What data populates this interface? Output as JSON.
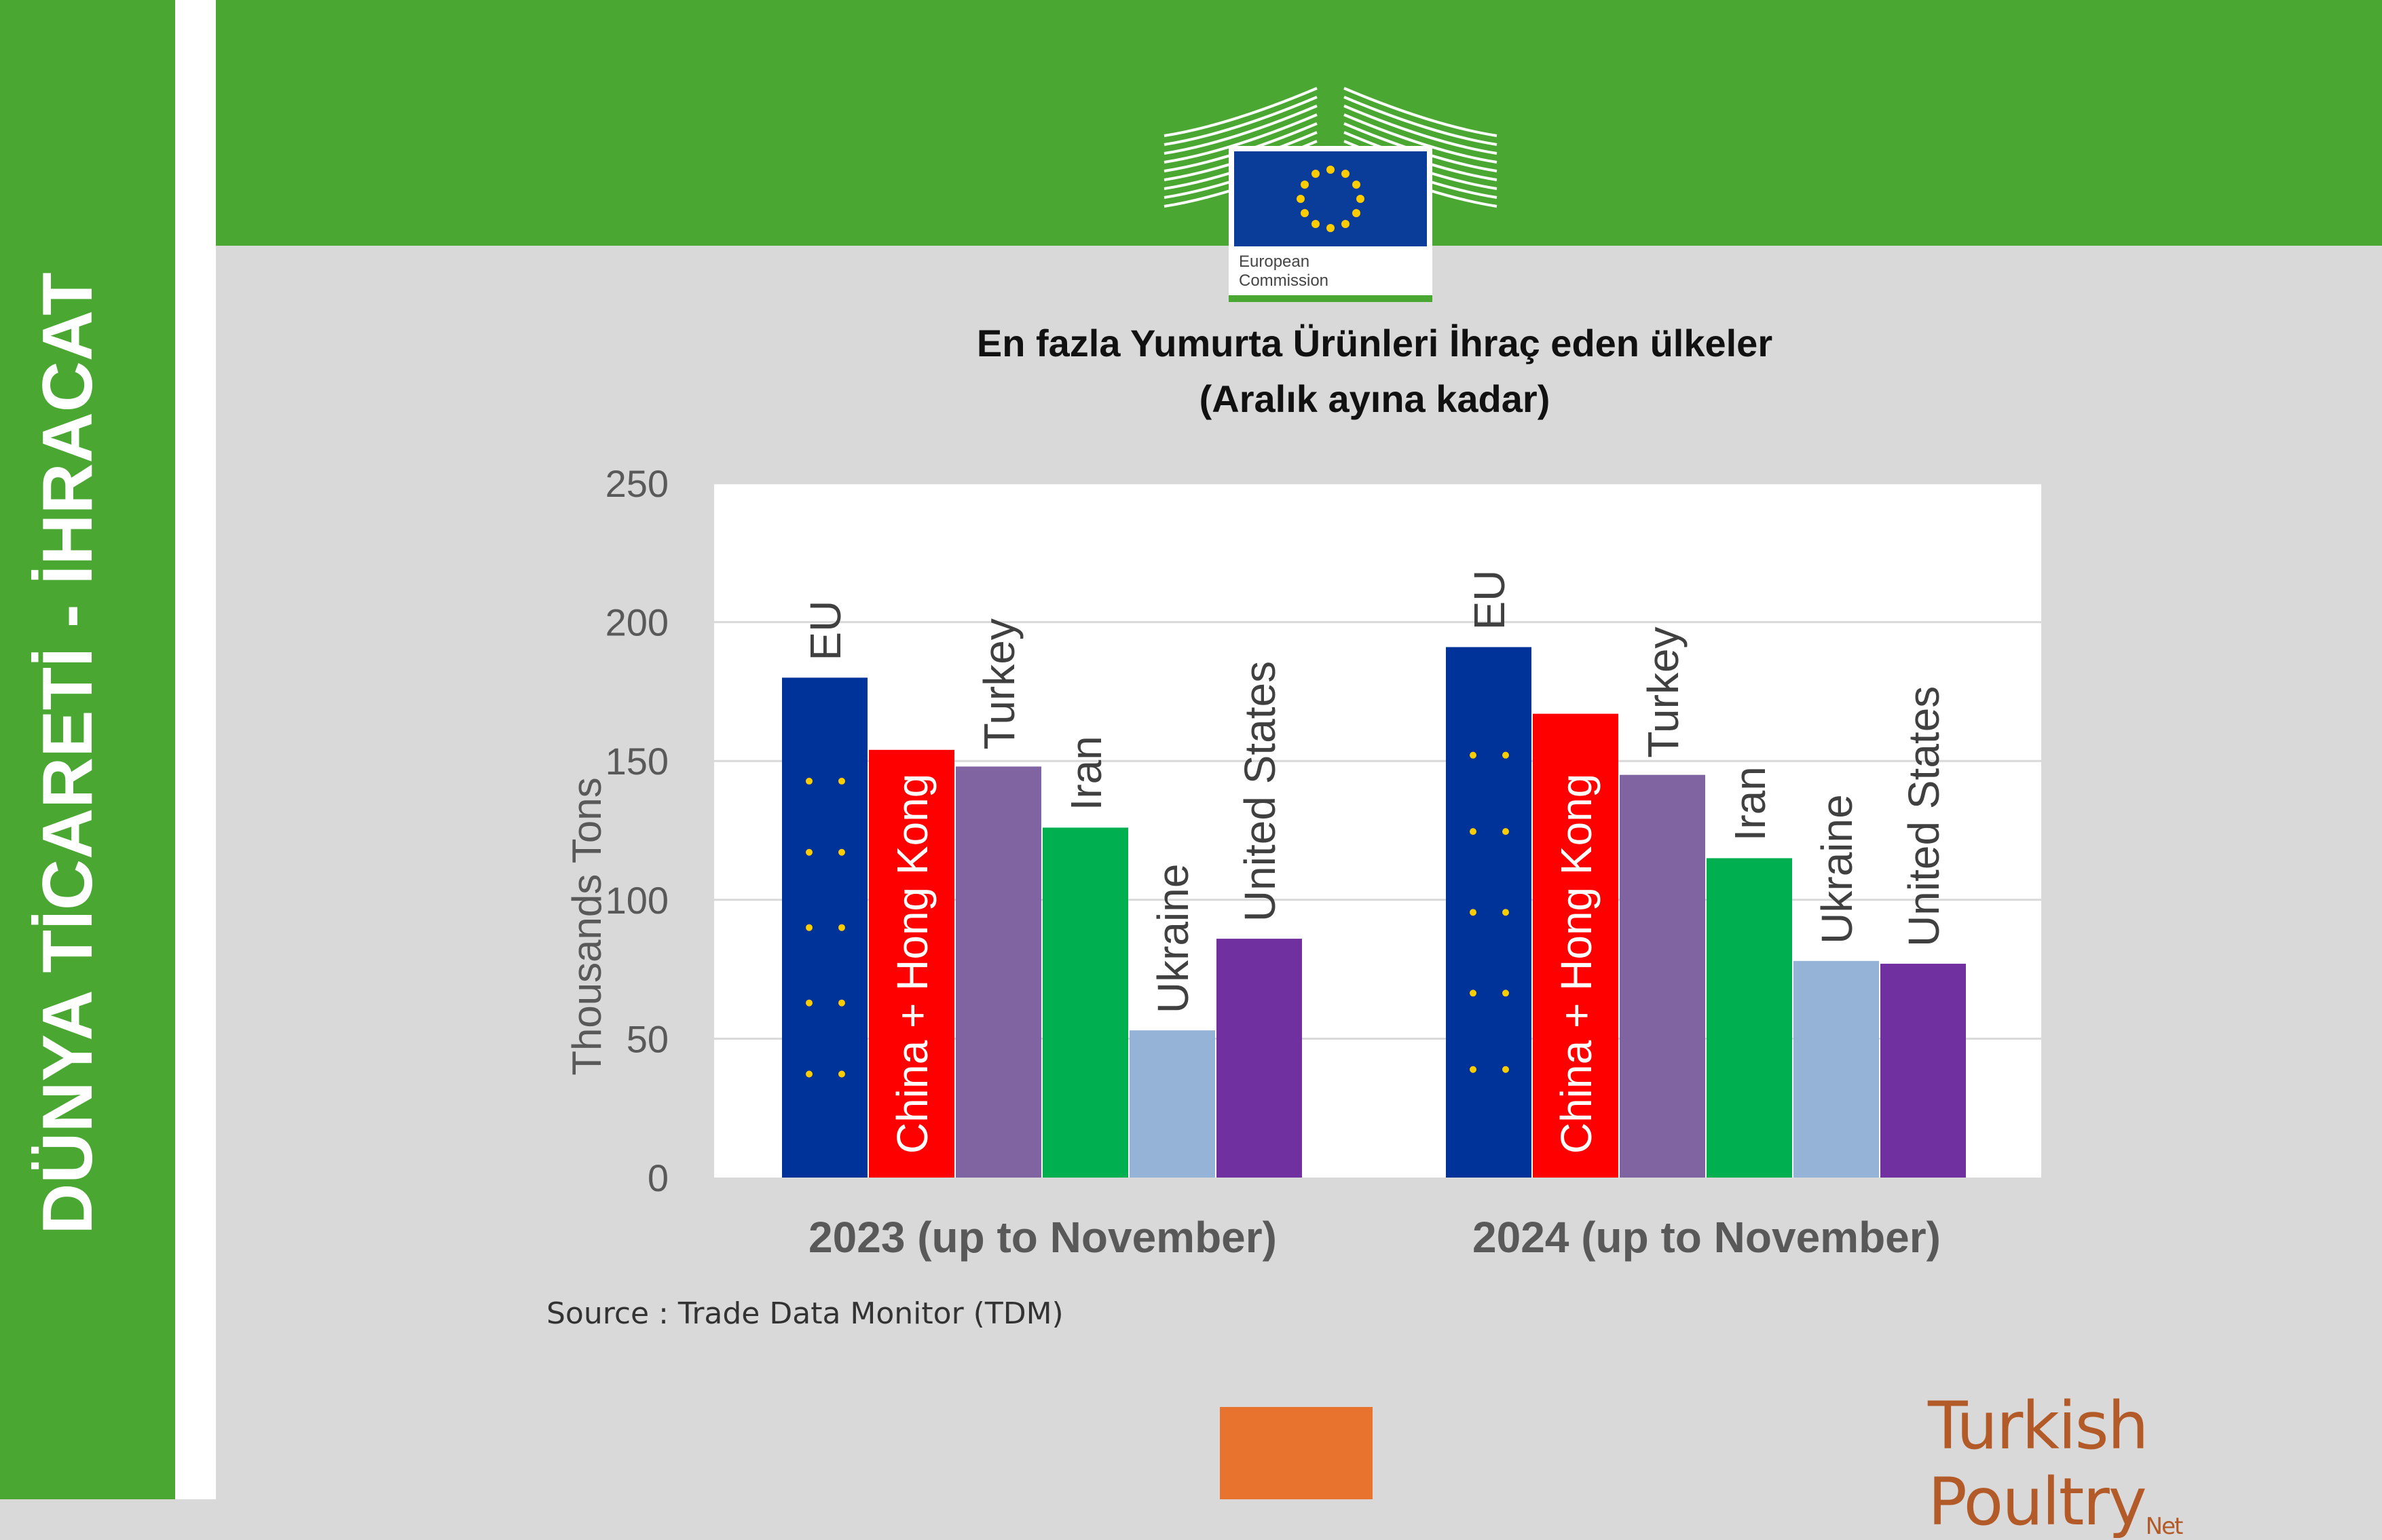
{
  "side_title": "DÜNYA TİCARETİ - İHRACAT",
  "logo": {
    "line1": "European",
    "line2": "Commission"
  },
  "title_line1": "En fazla Yumurta Ürünleri İhraç eden ülkeler",
  "title_line2": "(Aralık ayına kadar)",
  "source": "Source : Trade Data Monitor (TDM)",
  "brand": {
    "text": "Turkish Poultry",
    "suffix": "Net"
  },
  "colors": {
    "green": "#4aa832",
    "orange": "#e8732e"
  },
  "chart_data": {
    "type": "bar",
    "categories": [
      "2023 (up to November)",
      "2024 (up to November)"
    ],
    "series": [
      {
        "name": "EU",
        "color": "#003399",
        "values": [
          180,
          191
        ]
      },
      {
        "name": "China + Hong Kong",
        "color": "#ff0000",
        "values": [
          154,
          167
        ]
      },
      {
        "name": "Turkey",
        "color": "#8064a2",
        "values": [
          148,
          145
        ]
      },
      {
        "name": "Iran",
        "color": "#00b050",
        "values": [
          126,
          115
        ]
      },
      {
        "name": "Ukraine",
        "color": "#95b3d7",
        "values": [
          53,
          78
        ]
      },
      {
        "name": "United States",
        "color": "#7030a0",
        "values": [
          86,
          77
        ]
      }
    ],
    "ylabel": "Thousands Tons",
    "ylim": [
      0,
      250
    ],
    "yticks": [
      "0",
      "50",
      "100",
      "150",
      "200",
      "250"
    ],
    "grid": true,
    "legend": "labels above bars"
  }
}
